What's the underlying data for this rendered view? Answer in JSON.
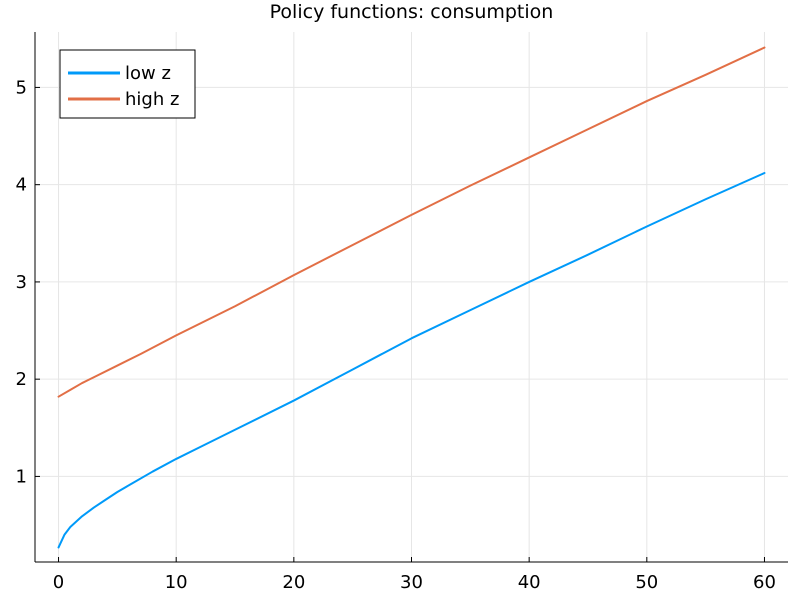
{
  "chart_data": {
    "type": "line",
    "title": "Policy functions: consumption",
    "xlabel": "",
    "ylabel": "",
    "xlim": [
      -2,
      62
    ],
    "ylim": [
      0.12,
      5.57
    ],
    "x_ticks": [
      0,
      10,
      20,
      30,
      40,
      50,
      60
    ],
    "y_ticks": [
      1,
      2,
      3,
      4,
      5
    ],
    "grid": true,
    "legend_position": "top-left",
    "series": [
      {
        "name": "low z",
        "color": "#009af9",
        "x": [
          0,
          0.5,
          1,
          2,
          3,
          4,
          5,
          6,
          8,
          10,
          12,
          15,
          20,
          25,
          30,
          35,
          40,
          45,
          50,
          55,
          60
        ],
        "y": [
          0.27,
          0.4,
          0.48,
          0.59,
          0.68,
          0.76,
          0.84,
          0.91,
          1.05,
          1.18,
          1.3,
          1.48,
          1.78,
          2.1,
          2.42,
          2.71,
          3.0,
          3.28,
          3.57,
          3.85,
          4.12
        ]
      },
      {
        "name": "high z",
        "color": "#e26f46",
        "x": [
          0,
          1,
          2,
          3,
          5,
          7,
          10,
          15,
          20,
          25,
          30,
          35,
          40,
          45,
          50,
          55,
          60
        ],
        "y": [
          1.82,
          1.89,
          1.96,
          2.02,
          2.14,
          2.26,
          2.45,
          2.75,
          3.07,
          3.38,
          3.69,
          3.99,
          4.28,
          4.57,
          4.86,
          5.13,
          5.41
        ]
      }
    ]
  }
}
